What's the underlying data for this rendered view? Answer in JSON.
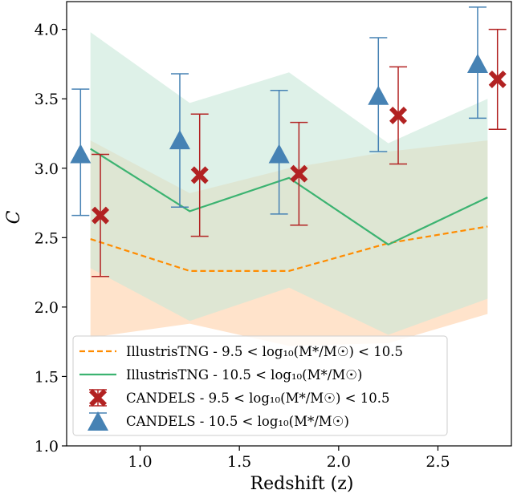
{
  "chart_data": {
    "type": "line",
    "xlabel": "Redshift (z)",
    "ylabel": "C",
    "xlim": [
      0.63,
      2.87
    ],
    "ylim": [
      1.0,
      4.2
    ],
    "xticks": [
      1.0,
      1.5,
      2.0,
      2.5
    ],
    "xtick_labels": [
      "1.0",
      "1.5",
      "2.0",
      "2.5"
    ],
    "yticks": [
      1.0,
      1.5,
      2.0,
      2.5,
      3.0,
      3.5,
      4.0
    ],
    "ytick_labels": [
      "1.0",
      "1.5",
      "2.0",
      "2.5",
      "3.0",
      "3.5",
      "4.0"
    ],
    "grid": false,
    "legend_position": "lower-left",
    "colors": {
      "tng_low": "#ff8c00",
      "tng_high": "#3cb371",
      "candels_low": "#b22222",
      "candels_high": "#4682b4",
      "band_low": "#ffdab9",
      "band_high": "#c8e8d8"
    },
    "bands": [
      {
        "name": "tng-low-band",
        "x": [
          0.75,
          1.25,
          1.75,
          2.25,
          2.75
        ],
        "upper": [
          3.2,
          2.82,
          3.0,
          3.12,
          3.2
        ],
        "lower": [
          1.78,
          1.88,
          1.72,
          1.74,
          1.95
        ]
      },
      {
        "name": "tng-high-band",
        "x": [
          0.75,
          1.25,
          1.75,
          2.25,
          2.75
        ],
        "upper": [
          3.98,
          3.47,
          3.69,
          3.18,
          3.5
        ],
        "lower": [
          2.28,
          1.9,
          2.14,
          1.8,
          2.06
        ]
      }
    ],
    "series": [
      {
        "name": "IllustrisTNG - 9.5 < log₁₀(M*/M☉) < 10.5",
        "kind": "line",
        "style": "dashed",
        "x": [
          0.75,
          1.25,
          1.75,
          2.25,
          2.75
        ],
        "y": [
          2.49,
          2.26,
          2.26,
          2.46,
          2.58
        ]
      },
      {
        "name": "IllustrisTNG - 10.5 < log₁₀(M*/M☉)",
        "kind": "line",
        "style": "solid",
        "x": [
          0.75,
          1.25,
          1.75,
          2.25,
          2.75
        ],
        "y": [
          3.14,
          2.69,
          2.93,
          2.45,
          2.79
        ]
      },
      {
        "name": "CANDELS - 9.5 < log₁₀(M*/M☉) < 10.5",
        "kind": "scatter",
        "marker": "x",
        "x": [
          0.8,
          1.3,
          1.8,
          2.3,
          2.8
        ],
        "y": [
          2.66,
          2.95,
          2.96,
          3.38,
          3.64
        ],
        "yerr_low": [
          2.22,
          2.51,
          2.59,
          3.03,
          3.28
        ],
        "yerr_high": [
          3.1,
          3.39,
          3.33,
          3.73,
          4.0
        ]
      },
      {
        "name": "CANDELS - 10.5 < log₁₀(M*/M☉)",
        "kind": "scatter",
        "marker": "triangle",
        "x": [
          0.7,
          1.2,
          1.7,
          2.2,
          2.7
        ],
        "y": [
          3.1,
          3.2,
          3.1,
          3.52,
          3.75
        ],
        "yerr_low": [
          2.66,
          2.72,
          2.67,
          3.12,
          3.36
        ],
        "yerr_high": [
          3.57,
          3.68,
          3.56,
          3.94,
          4.16
        ]
      }
    ]
  }
}
